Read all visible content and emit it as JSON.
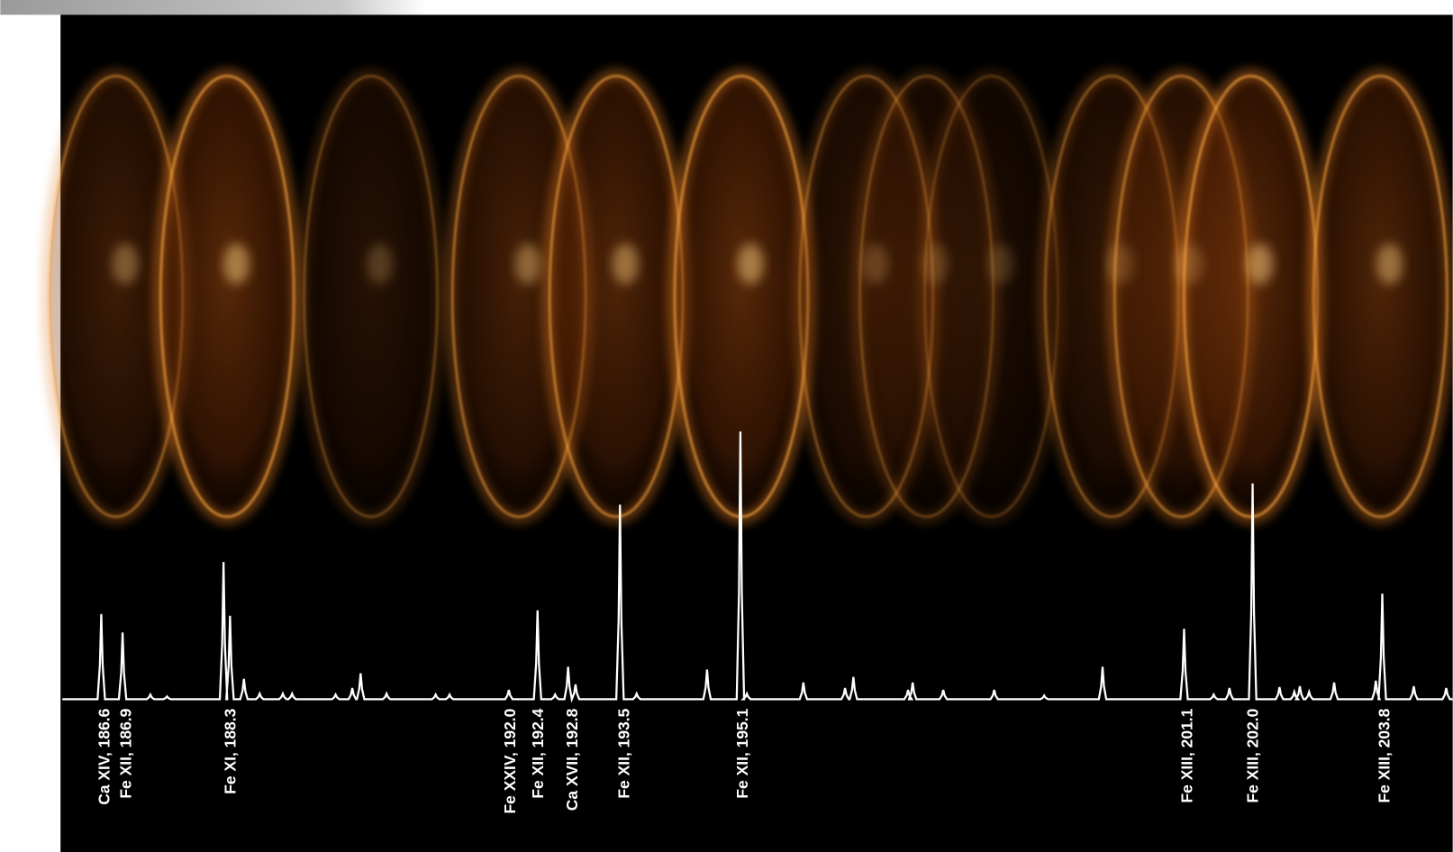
{
  "labels": [
    "Ca XIV, 186.6",
    "Fe XII, 186.9",
    "Fe XI, 188.3",
    "Fe XXIV, 192.0",
    "Fe XII, 192.4",
    "Ca XVII, 192.8",
    "Fe XII, 193.5",
    "Fe XII, 195.1",
    "Fe XIII, 201.1",
    "Fe XIII, 202.0",
    "Fe XIII, 203.8"
  ]
}
